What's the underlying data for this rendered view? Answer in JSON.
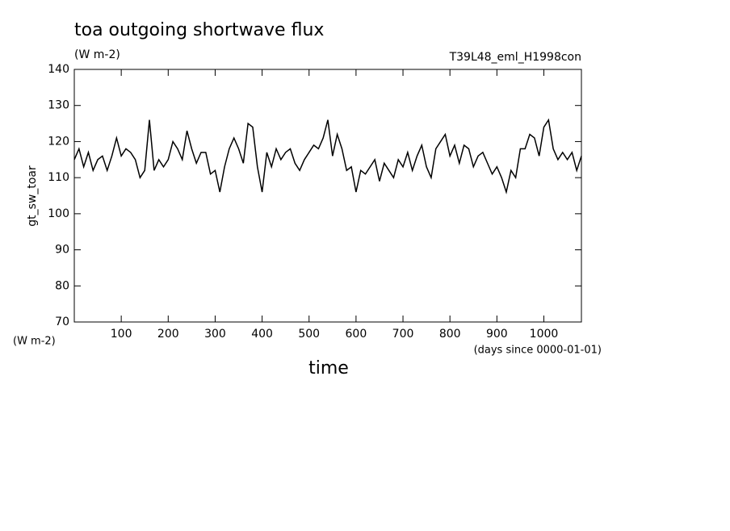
{
  "chart_data": {
    "type": "line",
    "title": "toa outgoing shortwave flux",
    "subtitle": "(W m-2)",
    "annotation": "T39L48_eml_H1998con",
    "ylabel": "gt_sw_toar",
    "yunit": "(W m-2)",
    "xlabel": "time",
    "xunit": "(days since 0000-01-01)",
    "xlim": [
      0,
      1080
    ],
    "ylim": [
      70,
      140
    ],
    "xticks": [
      100,
      200,
      300,
      400,
      500,
      600,
      700,
      800,
      900,
      1000
    ],
    "yticks": [
      70,
      80,
      90,
      100,
      110,
      120,
      130,
      140
    ],
    "x": [
      0,
      10,
      20,
      30,
      40,
      50,
      60,
      70,
      80,
      90,
      100,
      110,
      120,
      130,
      140,
      150,
      160,
      170,
      180,
      190,
      200,
      210,
      220,
      230,
      240,
      250,
      260,
      270,
      280,
      290,
      300,
      310,
      320,
      330,
      340,
      350,
      360,
      370,
      380,
      390,
      400,
      410,
      420,
      430,
      440,
      450,
      460,
      470,
      480,
      490,
      500,
      510,
      520,
      530,
      540,
      550,
      560,
      570,
      580,
      590,
      600,
      610,
      620,
      630,
      640,
      650,
      660,
      670,
      680,
      690,
      700,
      710,
      720,
      730,
      740,
      750,
      760,
      770,
      780,
      790,
      800,
      810,
      820,
      830,
      840,
      850,
      860,
      870,
      880,
      890,
      900,
      910,
      920,
      930,
      940,
      950,
      960,
      970,
      980,
      990,
      1000,
      1010,
      1020,
      1030,
      1040,
      1050,
      1060,
      1070,
      1080
    ],
    "series": [
      {
        "name": "gt_sw_toar",
        "color": "#000000",
        "values": [
          115,
          118,
          113,
          117,
          112,
          115,
          116,
          112,
          116,
          121,
          116,
          118,
          117,
          115,
          110,
          112,
          126,
          112,
          115,
          113,
          115,
          120,
          118,
          115,
          123,
          118,
          114,
          117,
          117,
          111,
          112,
          106,
          113,
          118,
          121,
          118,
          114,
          125,
          124,
          113,
          106,
          117,
          113,
          118,
          115,
          117,
          118,
          114,
          112,
          115,
          117,
          119,
          118,
          121,
          126,
          116,
          122,
          118,
          112,
          113,
          106,
          112,
          111,
          113,
          115,
          109,
          114,
          112,
          110,
          115,
          113,
          117,
          112,
          116,
          119,
          113,
          110,
          118,
          120,
          122,
          116,
          119,
          114,
          119,
          118,
          113,
          116,
          117,
          114,
          111,
          113,
          110,
          106,
          112,
          110,
          118,
          118,
          122,
          121,
          116,
          124,
          126,
          118,
          115,
          117,
          115,
          117,
          112,
          116
        ]
      }
    ]
  }
}
